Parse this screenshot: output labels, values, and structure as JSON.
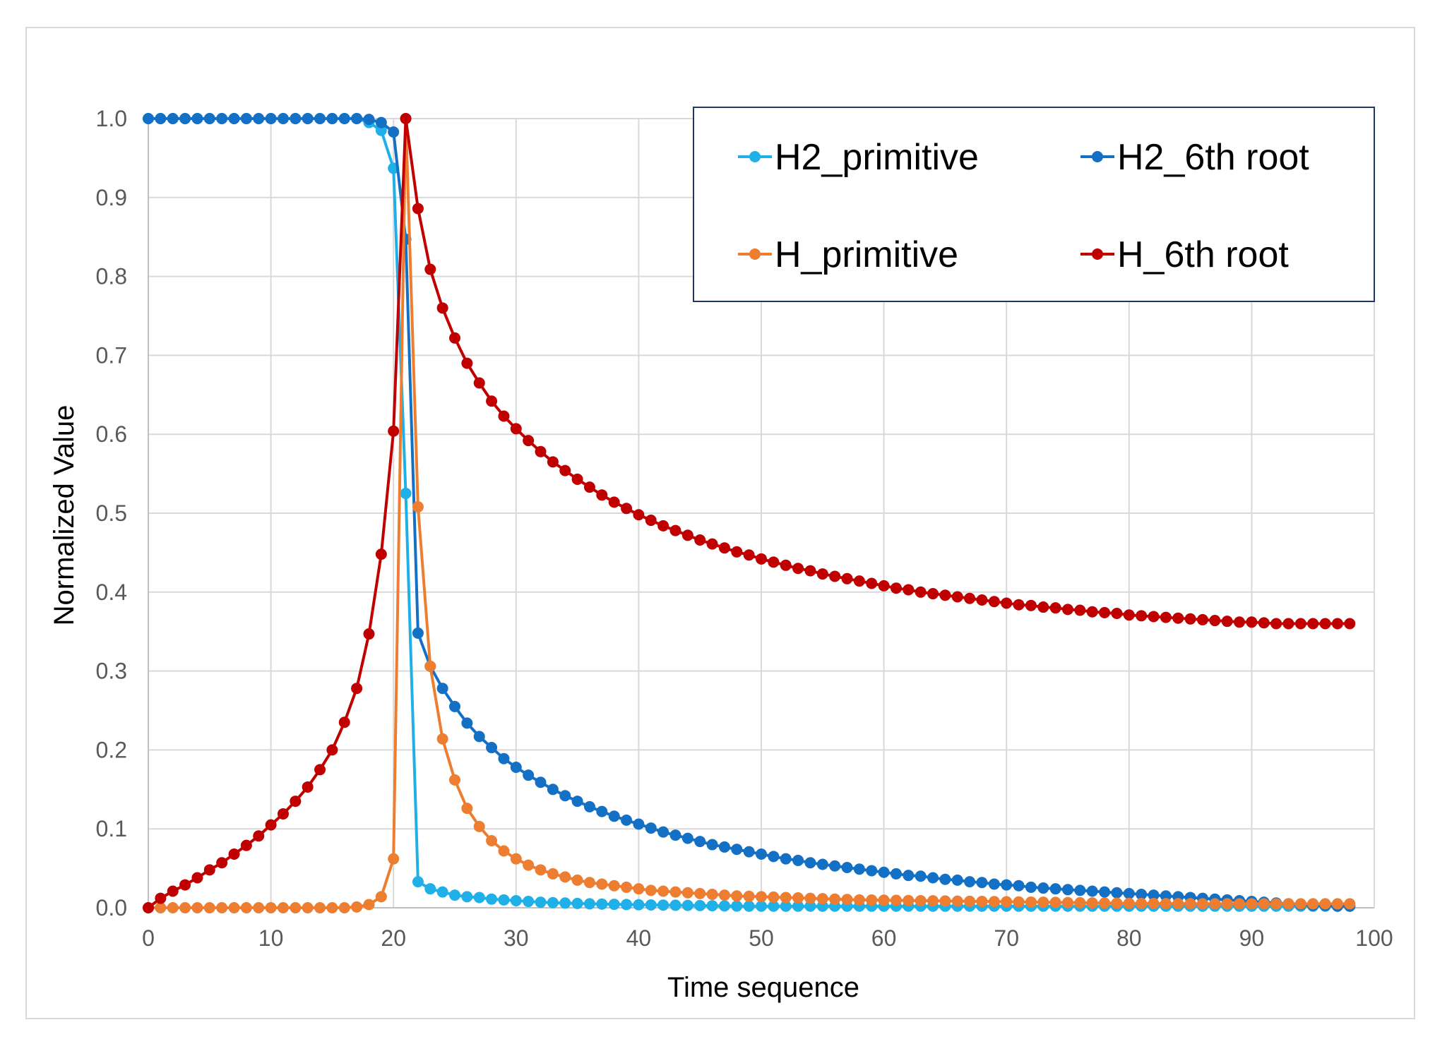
{
  "chart_data": {
    "type": "line",
    "title": "",
    "xlabel": "Time sequence",
    "ylabel": "Normalized Value",
    "xlim": [
      0,
      100
    ],
    "ylim": [
      0,
      1.0
    ],
    "x_ticks": [
      "0",
      "10",
      "20",
      "30",
      "40",
      "50",
      "60",
      "70",
      "80",
      "90",
      "100"
    ],
    "y_ticks": [
      "0.0",
      "0.1",
      "0.2",
      "0.3",
      "0.4",
      "0.5",
      "0.6",
      "0.7",
      "0.8",
      "0.9",
      "1.0"
    ],
    "grid": true,
    "legend_position": "top-right",
    "x": [
      0,
      1,
      2,
      3,
      4,
      5,
      6,
      7,
      8,
      9,
      10,
      11,
      12,
      13,
      14,
      15,
      16,
      17,
      18,
      19,
      20,
      21,
      22,
      23,
      24,
      25,
      26,
      27,
      28,
      29,
      30,
      31,
      32,
      33,
      34,
      35,
      36,
      37,
      38,
      39,
      40,
      41,
      42,
      43,
      44,
      45,
      46,
      47,
      48,
      49,
      50,
      51,
      52,
      53,
      54,
      55,
      56,
      57,
      58,
      59,
      60,
      61,
      62,
      63,
      64,
      65,
      66,
      67,
      68,
      69,
      70,
      71,
      72,
      73,
      74,
      75,
      76,
      77,
      78,
      79,
      80,
      81,
      82,
      83,
      84,
      85,
      86,
      87,
      88,
      89,
      90,
      91,
      92,
      93,
      94,
      95,
      96,
      97,
      98
    ],
    "series": [
      {
        "name": "H2_primitive",
        "color": "#1fb0e8",
        "values": [
          1,
          1,
          1,
          1,
          1,
          1,
          1,
          1,
          1,
          1,
          1,
          1,
          1,
          1,
          1,
          1,
          1,
          1,
          0.995,
          0.985,
          0.937,
          0.525,
          0.033,
          0.024,
          0.02,
          0.016,
          0.014,
          0.013,
          0.011,
          0.01,
          0.009,
          0.008,
          0.007,
          0.0065,
          0.006,
          0.0055,
          0.005,
          0.0047,
          0.0044,
          0.0041,
          0.0038,
          0.0036,
          0.0034,
          0.0032,
          0.003,
          0.0028,
          0.0026,
          0.0024,
          0.0022,
          0.002,
          0.002,
          0.002,
          0.002,
          0.002,
          0.002,
          0.002,
          0.002,
          0.002,
          0.002,
          0.002,
          0.002,
          0.002,
          0.002,
          0.002,
          0.002,
          0.002,
          0.002,
          0.002,
          0.002,
          0.002,
          0.002,
          0.002,
          0.002,
          0.002,
          0.002,
          0.002,
          0.002,
          0.002,
          0.002,
          0.002,
          0.002,
          0.002,
          0.002,
          0.002,
          0.002,
          0.002,
          0.002,
          0.002,
          0.002,
          0.002,
          0.002,
          0.002,
          0.002,
          0.002,
          0.002,
          0.002,
          0.002,
          0.002,
          0.002
        ]
      },
      {
        "name": "H2_6th root",
        "color": "#1470c4",
        "values": [
          1,
          1,
          1,
          1,
          1,
          1,
          1,
          1,
          1,
          1,
          1,
          1,
          1,
          1,
          1,
          1,
          1,
          1,
          0.999,
          0.995,
          0.983,
          0.847,
          0.348,
          0.306,
          0.278,
          0.255,
          0.234,
          0.217,
          0.203,
          0.189,
          0.178,
          0.168,
          0.159,
          0.15,
          0.142,
          0.135,
          0.128,
          0.122,
          0.116,
          0.111,
          0.106,
          0.101,
          0.096,
          0.092,
          0.088,
          0.084,
          0.08,
          0.077,
          0.074,
          0.071,
          0.068,
          0.065,
          0.062,
          0.06,
          0.057,
          0.055,
          0.053,
          0.051,
          0.049,
          0.047,
          0.045,
          0.043,
          0.041,
          0.04,
          0.038,
          0.036,
          0.035,
          0.033,
          0.032,
          0.03,
          0.029,
          0.028,
          0.026,
          0.025,
          0.024,
          0.023,
          0.022,
          0.021,
          0.02,
          0.019,
          0.018,
          0.017,
          0.016,
          0.015,
          0.014,
          0.013,
          0.012,
          0.011,
          0.01,
          0.009,
          0.008,
          0.007,
          0.006,
          0.005,
          0.004,
          0.003,
          0.003,
          0.002,
          0.002
        ]
      },
      {
        "name": "H_primitive",
        "color": "#ed7d31",
        "values": [
          0,
          0,
          0,
          0,
          0,
          0,
          0,
          0,
          0,
          0,
          0,
          0,
          0,
          0,
          0,
          0,
          0,
          0.001,
          0.004,
          0.014,
          0.062,
          1.0,
          0.508,
          0.306,
          0.214,
          0.162,
          0.126,
          0.103,
          0.085,
          0.072,
          0.062,
          0.054,
          0.048,
          0.043,
          0.039,
          0.035,
          0.032,
          0.03,
          0.028,
          0.026,
          0.024,
          0.022,
          0.021,
          0.02,
          0.019,
          0.018,
          0.017,
          0.016,
          0.015,
          0.0145,
          0.014,
          0.0135,
          0.013,
          0.0125,
          0.012,
          0.0115,
          0.011,
          0.0105,
          0.01,
          0.0098,
          0.0096,
          0.0094,
          0.0092,
          0.009,
          0.0088,
          0.0086,
          0.0084,
          0.0082,
          0.008,
          0.0078,
          0.0076,
          0.0074,
          0.0072,
          0.007,
          0.0068,
          0.0066,
          0.0064,
          0.0062,
          0.006,
          0.0058,
          0.0056,
          0.0055,
          0.0054,
          0.0053,
          0.0052,
          0.0051,
          0.005,
          0.005,
          0.005,
          0.005,
          0.005,
          0.005,
          0.005,
          0.005,
          0.005,
          0.005,
          0.005,
          0.005,
          0.005
        ]
      },
      {
        "name": "H_6th root",
        "color": "#c00000",
        "values": [
          0,
          0.012,
          0.021,
          0.029,
          0.038,
          0.048,
          0.057,
          0.068,
          0.079,
          0.091,
          0.105,
          0.119,
          0.135,
          0.153,
          0.175,
          0.2,
          0.235,
          0.278,
          0.347,
          0.448,
          0.604,
          1.0,
          0.886,
          0.809,
          0.76,
          0.722,
          0.69,
          0.665,
          0.642,
          0.623,
          0.607,
          0.592,
          0.578,
          0.565,
          0.554,
          0.543,
          0.533,
          0.523,
          0.514,
          0.506,
          0.498,
          0.491,
          0.484,
          0.478,
          0.472,
          0.466,
          0.461,
          0.456,
          0.451,
          0.447,
          0.442,
          0.438,
          0.434,
          0.43,
          0.427,
          0.423,
          0.42,
          0.417,
          0.414,
          0.411,
          0.408,
          0.405,
          0.403,
          0.4,
          0.398,
          0.396,
          0.394,
          0.392,
          0.39,
          0.388,
          0.386,
          0.384,
          0.383,
          0.381,
          0.38,
          0.378,
          0.377,
          0.375,
          0.374,
          0.373,
          0.371,
          0.37,
          0.369,
          0.368,
          0.367,
          0.366,
          0.365,
          0.364,
          0.363,
          0.362,
          0.362,
          0.361,
          0.36,
          0.36,
          0.36,
          0.36,
          0.36,
          0.36,
          0.36
        ]
      }
    ]
  }
}
